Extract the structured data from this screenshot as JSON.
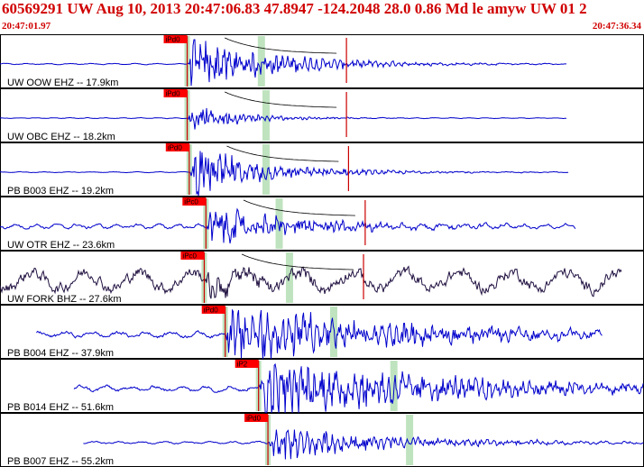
{
  "header": {
    "title": "60569291 UW Aug 10, 2013 20:47:06.83    47.8947 -124.2048 28.0 0.86 Md le amyw UW 01   2",
    "start_time": "20:47:01.97",
    "end_time": "20:47:36.34"
  },
  "chart_data": {
    "type": "line",
    "xlim": [
      0,
      34.37
    ],
    "x_unit": "seconds after 20:47:01.97",
    "grid": false,
    "legend": "none",
    "colors": {
      "trace": "#0000cc",
      "trace_dark": "#201040",
      "pick_box": "#ff0000",
      "pick_line": "#cc0000",
      "window": "#bfe3bf",
      "coda": "#000000"
    },
    "traces": [
      {
        "label": "UW OOW EHZ -- 17.9km",
        "pick": "iPd0",
        "pick_time": 9.99,
        "window_time": 13.95,
        "start_time": 0.0,
        "end_time": 30.25,
        "noise": 0.03,
        "amplitude": 0.9,
        "decay": 4.5,
        "freq": 3.2,
        "color": "#0000cc"
      },
      {
        "label": "UW OBC EHZ -- 18.2km",
        "pick": "iPd0",
        "pick_time": 9.99,
        "window_time": 14.2,
        "start_time": 0.0,
        "end_time": 30.25,
        "noise": 0.02,
        "amplitude": 0.5,
        "decay": 2.5,
        "freq": 4.0,
        "color": "#0000cc"
      },
      {
        "label": "PB B003 EHZ -- 19.2km",
        "pick": "iPd0",
        "pick_time": 10.1,
        "window_time": 14.2,
        "start_time": 0.0,
        "end_time": 30.35,
        "noise": 0.02,
        "amplitude": 0.85,
        "decay": 4.0,
        "freq": 3.0,
        "color": "#0000cc"
      },
      {
        "label": "UW OTR EHZ -- 23.6km",
        "pick": "iPc0",
        "pick_time": 10.99,
        "window_time": 14.9,
        "start_time": 0.0,
        "end_time": 30.72,
        "noise": 0.12,
        "amplitude": 0.7,
        "decay": 5.0,
        "freq": 3.4,
        "color": "#0000cc"
      },
      {
        "label": "UW FORK BHZ -- 27.6km",
        "pick": "iPc0",
        "pick_time": 10.9,
        "window_time": 15.45,
        "start_time": 0.0,
        "end_time": 33.2,
        "noise": 0.55,
        "amplitude": 0.45,
        "decay": 3.0,
        "freq": 1.3,
        "color": "#201040"
      },
      {
        "label": "PB B004 EHZ -- 37.9km",
        "pick": "iPd0",
        "pick_time": 12.02,
        "window_time": 17.81,
        "start_time": 1.95,
        "end_time": 32.17,
        "noise": 0.15,
        "amplitude": 1.0,
        "decay": 9.0,
        "freq": 2.6,
        "color": "#0000cc"
      },
      {
        "label": "PB B014 EHZ -- 51.6km",
        "pick": "iP2",
        "pick_time": 13.8,
        "window_time": 21.02,
        "start_time": 3.95,
        "end_time": 34.37,
        "noise": 0.15,
        "amplitude": 1.0,
        "decay": 10.0,
        "freq": 2.8,
        "color": "#0000cc"
      },
      {
        "label": "PB B007 EHZ -- 55.2km",
        "pick": "iPd0",
        "pick_time": 14.3,
        "window_time": 21.86,
        "start_time": 4.45,
        "end_time": 34.37,
        "noise": 0.06,
        "amplitude": 0.6,
        "decay": 6.0,
        "freq": 3.0,
        "color": "#0000cc"
      }
    ]
  }
}
